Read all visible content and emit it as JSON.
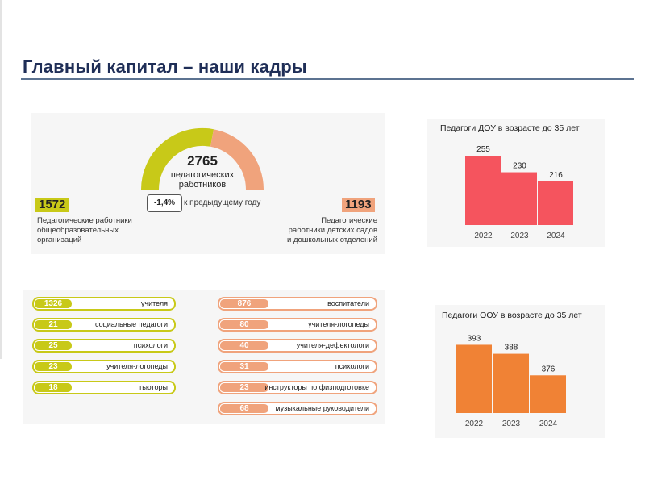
{
  "header": {
    "title": "Главный капитал – наши кадры"
  },
  "summary": {
    "total": "2765",
    "total_label_line1": "педагогических",
    "total_label_line2": "работников",
    "change": "-1,4%",
    "change_note": "к предыдущему году",
    "general": {
      "value": "1572",
      "label_line1": "Педагогические работники",
      "label_line2": "общеобразовательных",
      "label_line3": "организаций"
    },
    "preschool": {
      "value": "1193",
      "label_line1": "Педагогические",
      "label_line2": "работники детских садов",
      "label_line3": "и дошкольных отделений"
    }
  },
  "school_staff": [
    {
      "value": "1326",
      "label": "учителя"
    },
    {
      "value": "21",
      "label": "социальные педагоги"
    },
    {
      "value": "25",
      "label": "психологи"
    },
    {
      "value": "23",
      "label": "учителя-логопеды"
    },
    {
      "value": "18",
      "label": "тьюторы"
    }
  ],
  "preschool_staff": [
    {
      "value": "876",
      "label": "воспитатели"
    },
    {
      "value": "80",
      "label": "учителя-логопеды"
    },
    {
      "value": "40",
      "label": "учителя-дефектологи"
    },
    {
      "value": "31",
      "label": "психологи"
    },
    {
      "value": "23",
      "label": "инструкторы по физподготовке"
    },
    {
      "value": "68",
      "label": "музыкальные руководители"
    }
  ],
  "colors": {
    "green": "#c8c918",
    "orange": "#f0a37c",
    "red_bar": "#f5545e",
    "orange_bar": "#f08235",
    "title": "#1f2e57"
  },
  "chart_data": [
    {
      "type": "bar",
      "title": "Педагоги ДОУ в возрасте до 35 лет",
      "categories": [
        "2022",
        "2023",
        "2024"
      ],
      "values": [
        255,
        230,
        216
      ],
      "xlabel": "",
      "ylabel": "",
      "ylim": [
        150,
        260
      ],
      "color": "#f5545e",
      "grid": false
    },
    {
      "type": "bar",
      "title": "Педагоги ООУ в возрасте до 35 лет",
      "categories": [
        "2022",
        "2023",
        "2024"
      ],
      "values": [
        393,
        388,
        376
      ],
      "xlabel": "",
      "ylabel": "",
      "ylim": [
        355,
        395
      ],
      "color": "#f08235",
      "grid": false
    }
  ]
}
